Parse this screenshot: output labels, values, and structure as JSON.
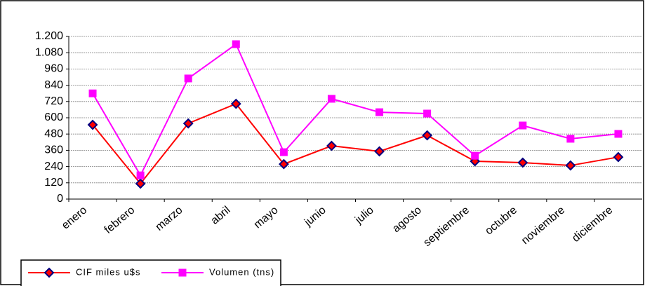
{
  "chart_data": {
    "type": "line",
    "categories": [
      "enero",
      "febrero",
      "marzo",
      "abril",
      "mayo",
      "junio",
      "julio",
      "agosto",
      "septiembre",
      "octubre",
      "noviembre",
      "diciembre"
    ],
    "series": [
      {
        "name": "CIF miles u$s",
        "color": "#ff0000",
        "marker_color": "#000080",
        "marker": "diamond",
        "values": [
          548,
          114,
          558,
          703,
          258,
          393,
          352,
          470,
          279,
          269,
          248,
          310
        ]
      },
      {
        "name": "Volumen (tns)",
        "color": "#ff00ff",
        "marker_color": "#ff00ff",
        "marker": "square",
        "values": [
          780,
          175,
          890,
          1143,
          346,
          740,
          641,
          631,
          320,
          543,
          445,
          481
        ]
      }
    ],
    "ylim": [
      0,
      1200
    ],
    "yticks": [
      0,
      120,
      240,
      360,
      480,
      600,
      720,
      840,
      960,
      {
        "value": 1080,
        "label": "1.080"
      },
      {
        "value": 1200,
        "label": "1.200"
      }
    ],
    "grid": true,
    "legend": "bottom-left"
  }
}
